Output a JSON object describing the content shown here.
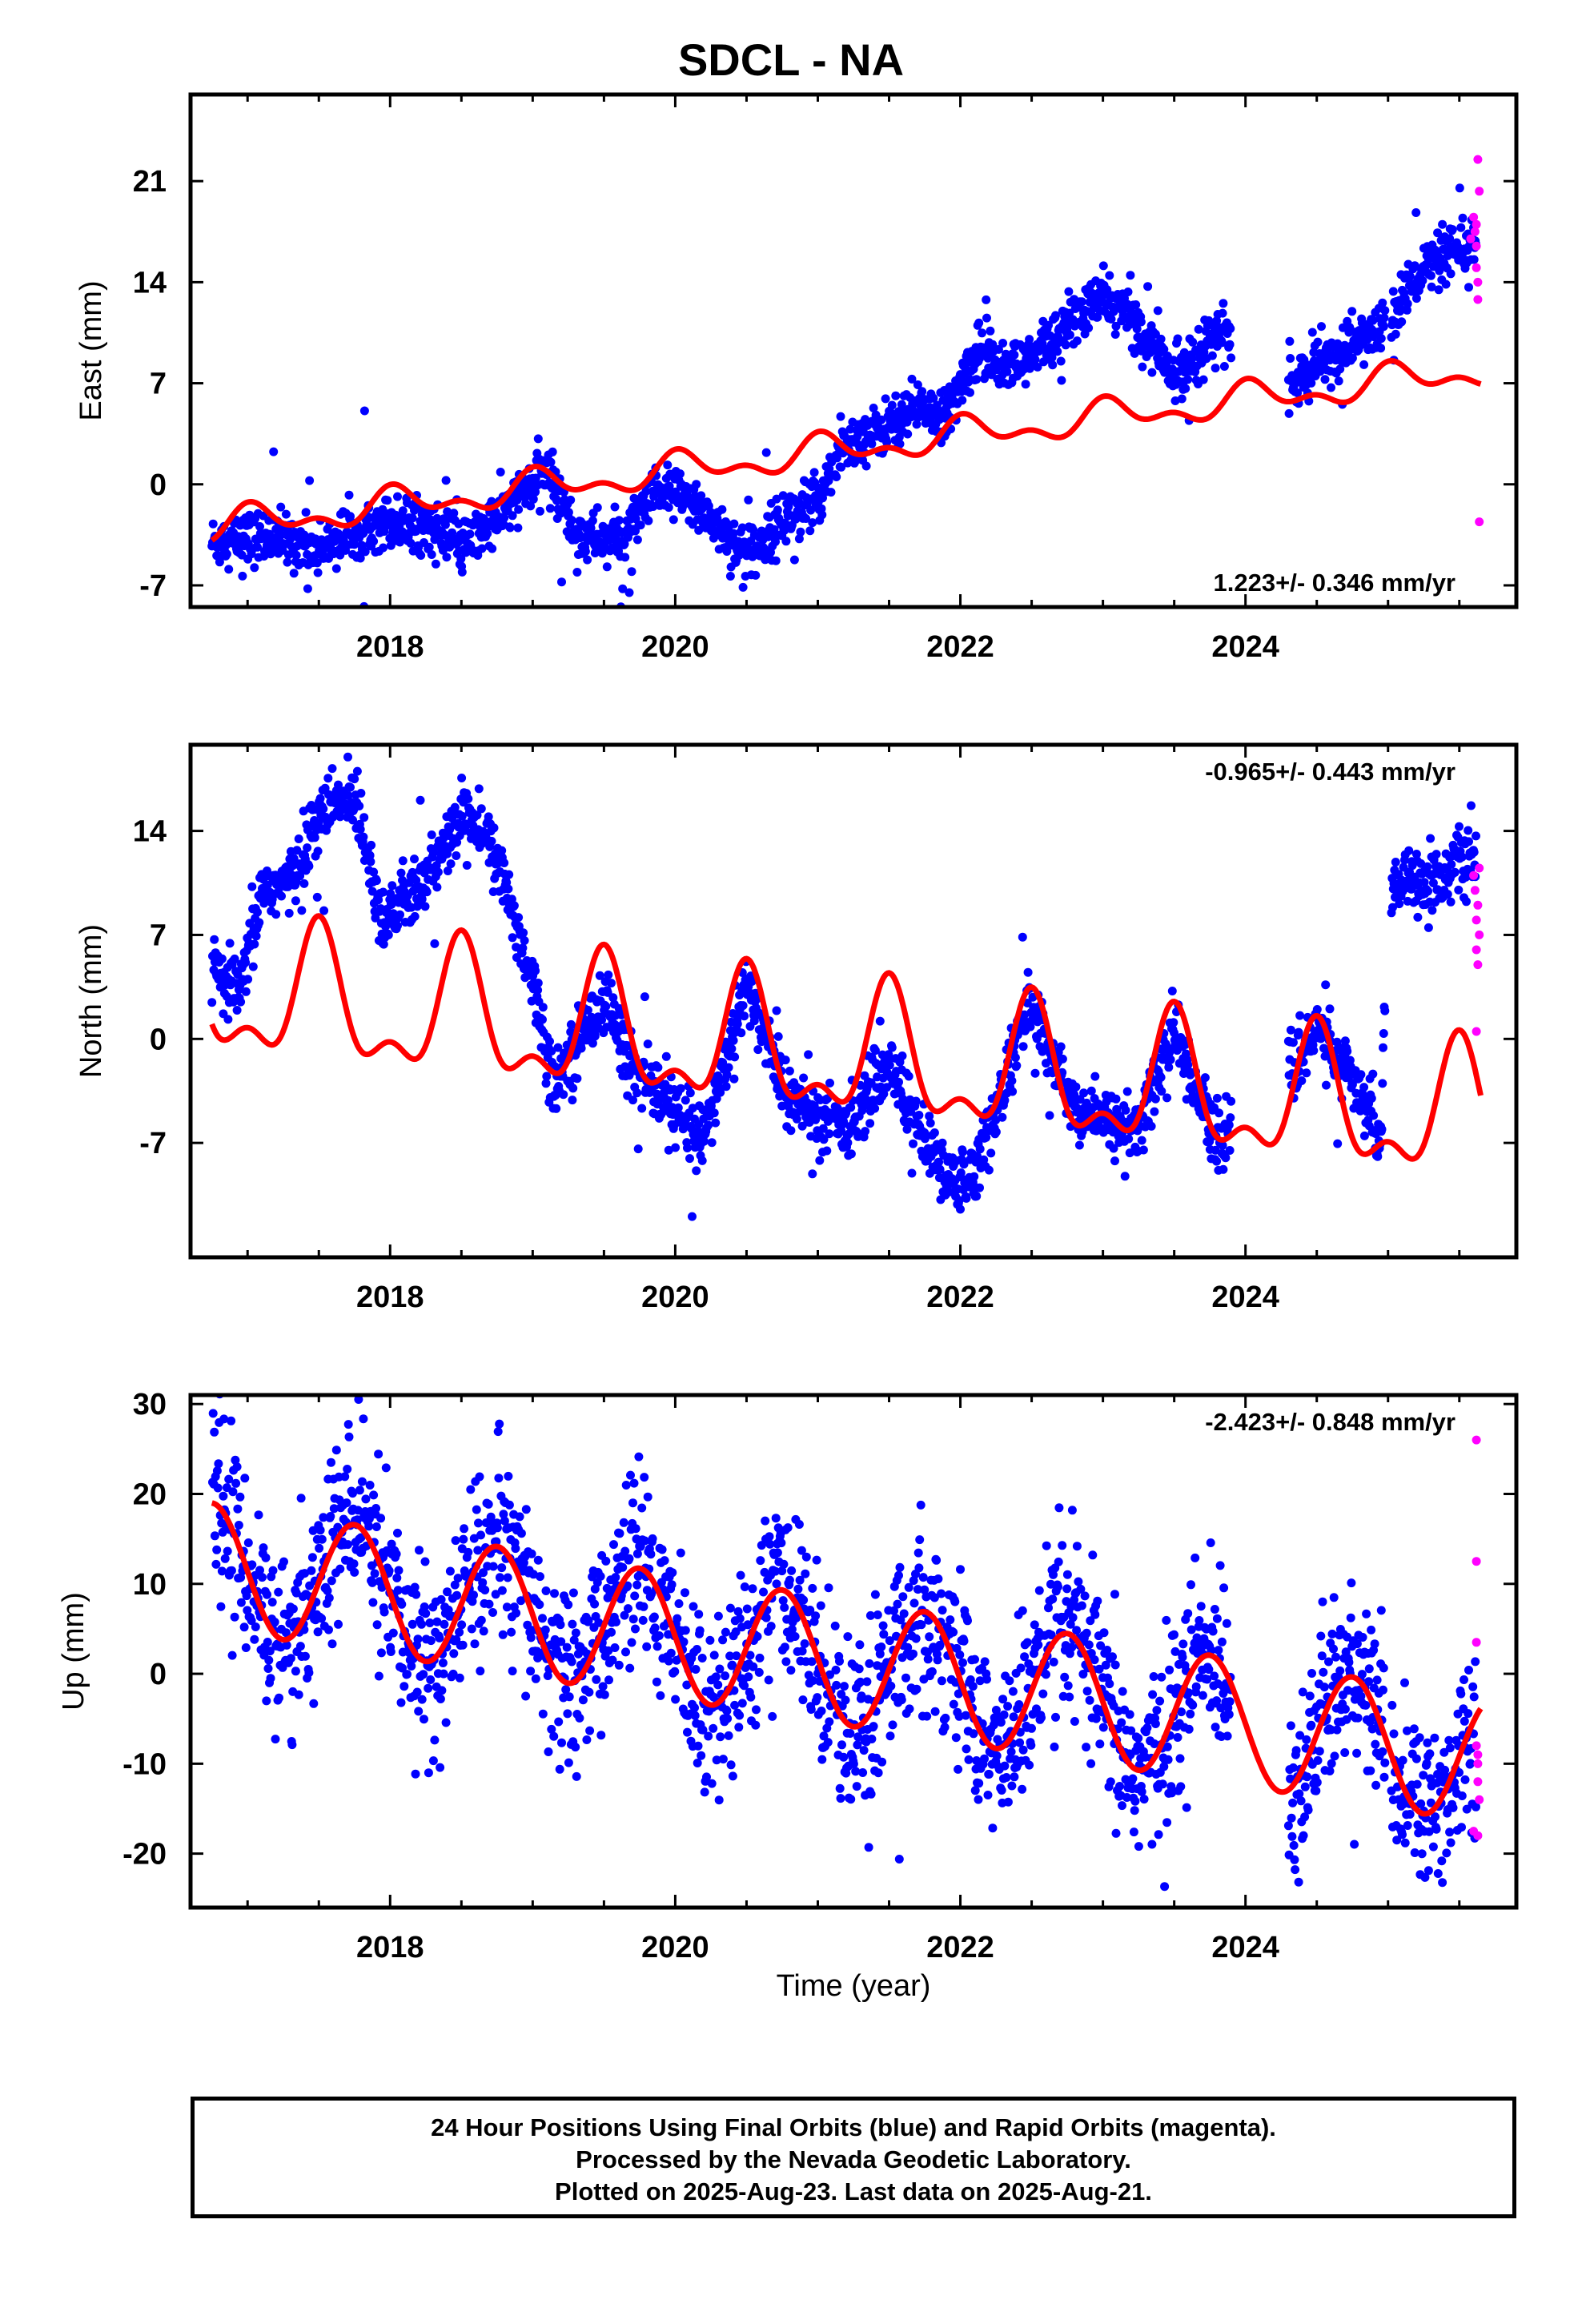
{
  "title": "SDCL - NA",
  "x_axis_label": "Time (year)",
  "colors": {
    "final_orbits": "#0000ff",
    "rapid_orbits": "#ff00ff",
    "model": "#ff0000",
    "axes": "#000000"
  },
  "footer": {
    "line1": "24 Hour Positions Using Final Orbits (blue) and Rapid Orbits (magenta).",
    "line2": "Processed by the Nevada Geodetic Laboratory.",
    "line3": "Plotted on 2025-Aug-23. Last data on 2025-Aug-21."
  },
  "chart_data": [
    {
      "type": "scatter",
      "ylabel": "East (mm)",
      "rate_label": "1.223+/- 0.346 mm/yr",
      "rate_position": "bottom-right",
      "xlim": [
        2016.6,
        2025.9
      ],
      "ylim": [
        -8.5,
        27
      ],
      "x_ticks": [
        2018,
        2020,
        2022,
        2024
      ],
      "y_ticks": [
        -7,
        0,
        7,
        14,
        21
      ],
      "final_orbits_trend": [
        [
          2016.75,
          -4.0
        ],
        [
          2017.2,
          -3.6
        ],
        [
          2017.5,
          -4.5
        ],
        [
          2017.9,
          -2.5
        ],
        [
          2018.3,
          -3.0
        ],
        [
          2018.5,
          -4.5
        ],
        [
          2018.9,
          -1.0
        ],
        [
          2019.1,
          1.0
        ],
        [
          2019.3,
          -3.5
        ],
        [
          2019.6,
          -4.0
        ],
        [
          2019.9,
          -0.3
        ],
        [
          2020.2,
          -1.8
        ],
        [
          2020.5,
          -5.0
        ],
        [
          2020.8,
          -2.0
        ],
        [
          2021.0,
          -1.2
        ],
        [
          2021.15,
          2.5
        ],
        [
          2021.4,
          3.5
        ],
        [
          2021.7,
          5.5
        ],
        [
          2021.9,
          4.5
        ],
        [
          2022.05,
          8.0
        ],
        [
          2022.15,
          9.5
        ],
        [
          2022.4,
          8.0
        ],
        [
          2022.7,
          10.5
        ],
        [
          2023.0,
          13.0
        ],
        [
          2023.2,
          11.5
        ],
        [
          2023.5,
          7.5
        ],
        [
          2023.75,
          10.0
        ],
        [
          2023.85,
          10.5
        ],
        [
          2024.35,
          7.0
        ],
        [
          2024.7,
          9.5
        ],
        [
          2025.0,
          11.0
        ],
        [
          2025.1,
          13.0
        ],
        [
          2025.25,
          15.0
        ],
        [
          2025.6,
          16.5
        ]
      ],
      "rapid_orbits_points": [
        [
          2025.58,
          17.0
        ],
        [
          2025.6,
          18.5
        ],
        [
          2025.61,
          17.5
        ],
        [
          2025.62,
          16.5
        ],
        [
          2025.62,
          15.0
        ],
        [
          2025.63,
          14.0
        ],
        [
          2025.63,
          12.8
        ],
        [
          2025.63,
          22.5
        ],
        [
          2025.64,
          20.3
        ],
        [
          2025.64,
          -2.6
        ],
        [
          2025.62,
          18.0
        ]
      ],
      "model_series": "red annual + linear fit"
    },
    {
      "type": "scatter",
      "ylabel": "North (mm)",
      "rate_label": "-0.965+/- 0.443 mm/yr",
      "rate_position": "top-right",
      "xlim": [
        2016.6,
        2025.9
      ],
      "ylim": [
        -14.7,
        19.8
      ],
      "x_ticks": [
        2018,
        2020,
        2022,
        2024
      ],
      "y_ticks": [
        -7,
        0,
        7,
        14
      ],
      "final_orbits_trend": [
        [
          2016.75,
          4.5
        ],
        [
          2016.95,
          3.0
        ],
        [
          2017.1,
          10.0
        ],
        [
          2017.3,
          10.5
        ],
        [
          2017.5,
          15.0
        ],
        [
          2017.75,
          16.5
        ],
        [
          2017.95,
          8.0
        ],
        [
          2018.2,
          10.0
        ],
        [
          2018.55,
          15.5
        ],
        [
          2018.75,
          12.0
        ],
        [
          2019.0,
          4.0
        ],
        [
          2019.15,
          -3.0
        ],
        [
          2019.5,
          3.0
        ],
        [
          2019.7,
          -2.0
        ],
        [
          2020.0,
          -5.0
        ],
        [
          2020.2,
          -6.5
        ],
        [
          2020.5,
          3.5
        ],
        [
          2020.8,
          -4.0
        ],
        [
          2021.0,
          -5.5
        ],
        [
          2021.2,
          -6.0
        ],
        [
          2021.5,
          -1.5
        ],
        [
          2021.75,
          -7.0
        ],
        [
          2021.95,
          -10.0
        ],
        [
          2022.1,
          -9.0
        ],
        [
          2022.5,
          2.5
        ],
        [
          2022.75,
          -4.0
        ],
        [
          2023.0,
          -5.5
        ],
        [
          2023.25,
          -6.0
        ],
        [
          2023.5,
          0.5
        ],
        [
          2023.8,
          -7.0
        ],
        [
          2024.35,
          -2.0
        ],
        [
          2024.5,
          1.0
        ],
        [
          2024.75,
          -3.0
        ],
        [
          2024.95,
          -6.5
        ],
        [
          2025.0,
          10.5
        ],
        [
          2025.3,
          10.5
        ],
        [
          2025.6,
          12.5
        ]
      ],
      "rapid_orbits_points": [
        [
          2025.6,
          11.0
        ],
        [
          2025.61,
          10.0
        ],
        [
          2025.62,
          8.0
        ],
        [
          2025.62,
          6.0
        ],
        [
          2025.63,
          5.0
        ],
        [
          2025.63,
          9.0
        ],
        [
          2025.64,
          7.0
        ],
        [
          2025.64,
          11.5
        ],
        [
          2025.62,
          0.5
        ]
      ],
      "model_series": "red annual + linear fit"
    },
    {
      "type": "scatter",
      "ylabel": "Up (mm)",
      "rate_label": "-2.423+/- 0.848 mm/yr",
      "rate_position": "top-right",
      "xlim": [
        2016.6,
        2025.9
      ],
      "ylim": [
        -26,
        31
      ],
      "x_ticks": [
        2018,
        2020,
        2022,
        2024
      ],
      "y_ticks": [
        -20,
        -10,
        0,
        10,
        20,
        30
      ],
      "final_orbits_trend": "annual oscillation about a declining trend; amplitude about 7 mm with scatter about 5 mm",
      "rapid_orbits_points": [
        [
          2025.62,
          26.0
        ],
        [
          2025.62,
          12.5
        ],
        [
          2025.62,
          3.5
        ],
        [
          2025.62,
          -8.0
        ],
        [
          2025.63,
          -10.0
        ],
        [
          2025.63,
          -12.0
        ],
        [
          2025.64,
          -14.0
        ],
        [
          2025.6,
          -17.5
        ],
        [
          2025.63,
          -9.0
        ],
        [
          2025.63,
          -18.0
        ]
      ],
      "model_series": "red annual + linear fit"
    }
  ]
}
